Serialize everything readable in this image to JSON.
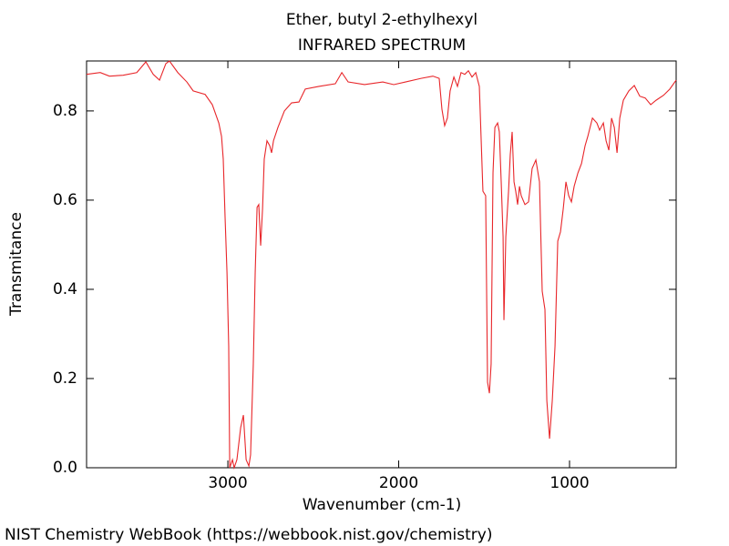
{
  "chart_data": {
    "type": "line",
    "title": "Ether, butyl 2-ethylhexyl",
    "subtitle": "INFRARED SPECTRUM",
    "x_label": "Wavenumber (cm-1)",
    "y_label": "Transmitance",
    "footer": "NIST Chemistry WebBook (https://webbook.nist.gov/chemistry)",
    "color": "#e8262a",
    "xlim": [
      3827,
      376
    ],
    "ylim": [
      0,
      0.912
    ],
    "xticks": [
      3000,
      2000,
      1000
    ],
    "yticks": [
      {
        "value": 0,
        "label": "0.0"
      },
      0.2,
      0.4,
      0.6,
      0.8
    ],
    "x": [
      3827,
      3747,
      3693,
      3613,
      3533,
      3480,
      3437,
      3400,
      3363,
      3342,
      3293,
      3240,
      3203,
      3133,
      3091,
      3053,
      3037,
      3027,
      3016,
      3005,
      2995,
      2989,
      2973,
      2963,
      2947,
      2925,
      2909,
      2893,
      2877,
      2867,
      2851,
      2840,
      2829,
      2819,
      2808,
      2797,
      2787,
      2771,
      2755,
      2744,
      2733,
      2707,
      2669,
      2627,
      2584,
      2547,
      2467,
      2371,
      2333,
      2296,
      2200,
      2093,
      2029,
      1960,
      1869,
      1800,
      1763,
      1747,
      1731,
      1715,
      1699,
      1677,
      1656,
      1635,
      1613,
      1592,
      1571,
      1549,
      1528,
      1507,
      1491,
      1480,
      1469,
      1459,
      1448,
      1437,
      1421,
      1411,
      1400,
      1389,
      1384,
      1373,
      1357,
      1347,
      1336,
      1325,
      1315,
      1304,
      1293,
      1283,
      1261,
      1240,
      1219,
      1197,
      1176,
      1160,
      1144,
      1133,
      1117,
      1101,
      1085,
      1069,
      1053,
      1037,
      1021,
      1005,
      989,
      973,
      951,
      930,
      909,
      893,
      866,
      840,
      824,
      802,
      786,
      770,
      754,
      738,
      722,
      706,
      685,
      653,
      621,
      589,
      557,
      525,
      493,
      450,
      413,
      376
    ],
    "values": [
      0.882,
      0.886,
      0.878,
      0.88,
      0.886,
      0.91,
      0.882,
      0.869,
      0.906,
      0.912,
      0.886,
      0.865,
      0.845,
      0.837,
      0.814,
      0.773,
      0.743,
      0.692,
      0.559,
      0.437,
      0.273,
      0.0,
      0.018,
      0.0,
      0.018,
      0.09,
      0.118,
      0.018,
      0.004,
      0.029,
      0.233,
      0.437,
      0.584,
      0.59,
      0.498,
      0.58,
      0.692,
      0.733,
      0.722,
      0.706,
      0.733,
      0.763,
      0.8,
      0.818,
      0.82,
      0.849,
      0.855,
      0.861,
      0.886,
      0.865,
      0.859,
      0.865,
      0.859,
      0.865,
      0.873,
      0.878,
      0.873,
      0.804,
      0.767,
      0.784,
      0.845,
      0.876,
      0.855,
      0.886,
      0.882,
      0.89,
      0.876,
      0.886,
      0.855,
      0.62,
      0.61,
      0.192,
      0.167,
      0.233,
      0.661,
      0.763,
      0.773,
      0.753,
      0.641,
      0.518,
      0.331,
      0.518,
      0.62,
      0.702,
      0.753,
      0.641,
      0.62,
      0.59,
      0.631,
      0.61,
      0.59,
      0.596,
      0.671,
      0.69,
      0.641,
      0.396,
      0.355,
      0.151,
      0.065,
      0.151,
      0.273,
      0.508,
      0.529,
      0.58,
      0.641,
      0.61,
      0.596,
      0.631,
      0.661,
      0.682,
      0.722,
      0.743,
      0.784,
      0.773,
      0.757,
      0.773,
      0.733,
      0.712,
      0.784,
      0.763,
      0.706,
      0.784,
      0.824,
      0.845,
      0.857,
      0.833,
      0.829,
      0.814,
      0.824,
      0.835,
      0.849,
      0.869
    ]
  }
}
